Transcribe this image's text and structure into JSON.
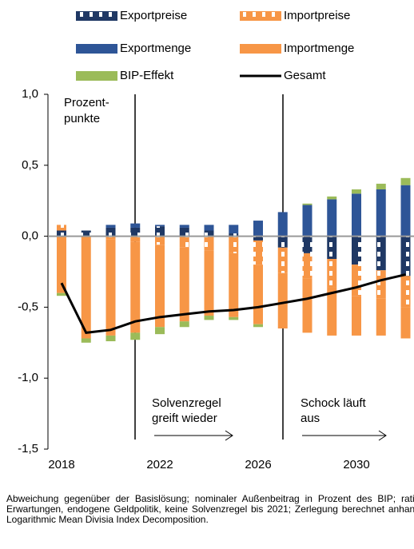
{
  "chart_data": {
    "type": "bar",
    "stacked": true,
    "categories": [
      "2018",
      null,
      null,
      null,
      "2022",
      null,
      null,
      null,
      "2026",
      null,
      null,
      null,
      "2030",
      null,
      null
    ],
    "series": [
      {
        "name": "Exportpreise",
        "color": "#1f3864",
        "pattern": true,
        "values": [
          0.04,
          0.04,
          0.06,
          0.06,
          0.07,
          0.06,
          0.04,
          0.02,
          -0.03,
          -0.08,
          -0.12,
          -0.16,
          -0.2,
          -0.24,
          -0.28
        ]
      },
      {
        "name": "Importpreise",
        "color": "#f79646",
        "pattern": true,
        "values": [
          0.04,
          0,
          -0.02,
          -0.04,
          -0.06,
          -0.08,
          -0.1,
          -0.12,
          -0.17,
          -0.18,
          -0.18,
          -0.2,
          -0.22,
          -0.2,
          -0.22
        ]
      },
      {
        "name": "Exportmenge",
        "color": "#2e5597",
        "values": [
          0,
          0,
          0.02,
          0.03,
          0.01,
          0.02,
          0.04,
          0.06,
          0.11,
          0.17,
          0.22,
          0.26,
          0.3,
          0.33,
          0.36
        ]
      },
      {
        "name": "Importmenge",
        "color": "#f79646",
        "values": [
          -0.4,
          -0.72,
          -0.68,
          -0.64,
          -0.58,
          -0.52,
          -0.46,
          -0.45,
          -0.42,
          -0.39,
          -0.38,
          -0.34,
          -0.28,
          -0.26,
          -0.22
        ]
      },
      {
        "name": "BIP-Effekt",
        "color": "#9bbb59",
        "values": [
          -0.02,
          -0.03,
          -0.04,
          -0.05,
          -0.05,
          -0.04,
          -0.03,
          -0.02,
          -0.02,
          0,
          0.01,
          0.02,
          0.03,
          0.04,
          0.05
        ]
      },
      {
        "name": "Gesamt",
        "color": "#000000",
        "type": "line",
        "values": [
          -0.33,
          -0.68,
          -0.66,
          -0.6,
          -0.57,
          -0.55,
          -0.53,
          -0.52,
          -0.5,
          -0.47,
          -0.44,
          -0.4,
          -0.36,
          -0.31,
          -0.27
        ]
      }
    ],
    "ylim": [
      -1.5,
      1.0
    ],
    "yticks": [
      {
        "value": -1.5,
        "label": "-1,5"
      },
      {
        "value": -1.0,
        "label": "-1,0"
      },
      {
        "value": -0.5,
        "label": "-0,5"
      },
      {
        "value": 0,
        "label": "0,0"
      },
      {
        "value": 0.5,
        "label": "0,5"
      },
      {
        "value": 1.0,
        "label": "1,0"
      }
    ],
    "unit_label": [
      "Prozent-",
      "punkte"
    ],
    "annotations": [
      [
        "Solvenzregel",
        "greift wieder"
      ],
      [
        "Schock läuft",
        "aus"
      ]
    ],
    "note": "Abweichung gegenüber der Basislösung; nominaler Außenbeitrag in Prozent des BIP; rationale Erwartungen, endogene Geldpolitik, keine Solvenzregel bis 2021; Zerlegung berechnet anhand der Logarithmic Mean Divisia Index Decomposition."
  }
}
